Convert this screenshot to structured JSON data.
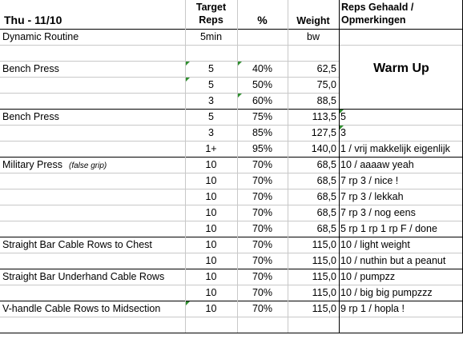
{
  "header": {
    "title": "Thu - 11/10",
    "target_reps": [
      "Target",
      "Reps"
    ],
    "percent": "%",
    "weight": "Weight",
    "reps_done": [
      "Reps Gehaald /",
      "Opmerkingen"
    ]
  },
  "warmup_label": "Warm Up",
  "rows": [
    {
      "exercise": "Dynamic Routine",
      "note": "",
      "reps": "5min",
      "pct": "",
      "weight": "bw",
      "result": ""
    },
    {
      "exercise": "",
      "note": "",
      "reps": "",
      "pct": "",
      "weight": "",
      "result": ""
    },
    {
      "exercise": "Bench Press",
      "note": "",
      "reps": "5",
      "pct": "40%",
      "weight": "62,5",
      "result": ""
    },
    {
      "exercise": "",
      "note": "",
      "reps": "5",
      "pct": "50%",
      "weight": "75,0",
      "result": ""
    },
    {
      "exercise": "",
      "note": "",
      "reps": "3",
      "pct": "60%",
      "weight": "88,5",
      "result": ""
    },
    {
      "exercise": "Bench Press",
      "note": "",
      "reps": "5",
      "pct": "75%",
      "weight": "113,5",
      "result": "5"
    },
    {
      "exercise": "",
      "note": "",
      "reps": "3",
      "pct": "85%",
      "weight": "127,5",
      "result": "3"
    },
    {
      "exercise": "",
      "note": "",
      "reps": "1+",
      "pct": "95%",
      "weight": "140,0",
      "result": "1 / vrij makkelijk eigenlijk"
    },
    {
      "exercise": "Military Press",
      "note": "(false grip)",
      "reps": "10",
      "pct": "70%",
      "weight": "68,5",
      "result": "10 / aaaaw yeah"
    },
    {
      "exercise": "",
      "note": "",
      "reps": "10",
      "pct": "70%",
      "weight": "68,5",
      "result": "7 rp 3 / nice !"
    },
    {
      "exercise": "",
      "note": "",
      "reps": "10",
      "pct": "70%",
      "weight": "68,5",
      "result": "7 rp 3 / lekkah"
    },
    {
      "exercise": "",
      "note": "",
      "reps": "10",
      "pct": "70%",
      "weight": "68,5",
      "result": "7 rp 3 / nog eens"
    },
    {
      "exercise": "",
      "note": "",
      "reps": "10",
      "pct": "70%",
      "weight": "68,5",
      "result": "5 rp 1 rp 1 rp F / done"
    },
    {
      "exercise": "Straight Bar Cable Rows to Chest",
      "note": "",
      "reps": "10",
      "pct": "70%",
      "weight": "115,0",
      "result": "10 / light weight"
    },
    {
      "exercise": "",
      "note": "",
      "reps": "10",
      "pct": "70%",
      "weight": "115,0",
      "result": "10 / nuthin but a peanut"
    },
    {
      "exercise": "Straight Bar Underhand Cable Rows",
      "note": "",
      "reps": "10",
      "pct": "70%",
      "weight": "115,0",
      "result": "10 / pumpzz"
    },
    {
      "exercise": "",
      "note": "",
      "reps": "10",
      "pct": "70%",
      "weight": "115,0",
      "result": "10 / big big pumpzzz"
    },
    {
      "exercise": "V-handle Cable Rows to Midsection",
      "note": "",
      "reps": "10",
      "pct": "70%",
      "weight": "115,0",
      "result": "9 rp 1 / hopla !"
    },
    {
      "exercise": "",
      "note": "",
      "reps": "",
      "pct": "",
      "weight": "",
      "result": ""
    }
  ],
  "colors": {
    "grid": "#c8c8c8",
    "border": "#000000",
    "comment_marker": "#2f8f2f"
  }
}
